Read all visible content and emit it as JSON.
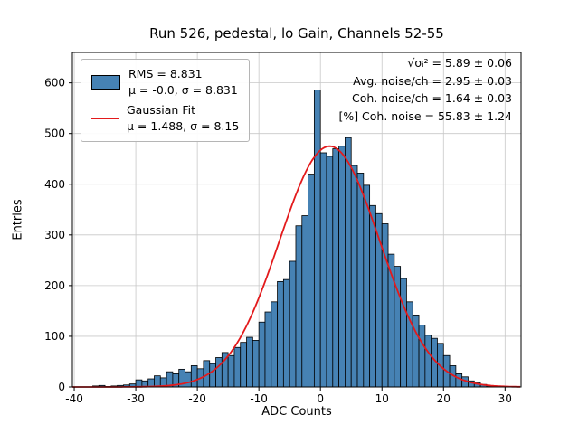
{
  "colors": {
    "bar": "#4682b4",
    "bar_edge": "#000000",
    "fit_line": "#e31a1c",
    "grid": "#c8c8c8",
    "spine": "#000000"
  },
  "legend": {
    "hist_line1": "RMS = 8.831",
    "hist_line2": "μ = -0.0, σ = 8.831",
    "fit_line1": "Gaussian Fit",
    "fit_line2": "μ = 1.488, σ = 8.15"
  },
  "annotations": [
    "√σᵢ² = 5.89 ± 0.06",
    "Avg. noise/ch = 2.95 ± 0.03",
    "Coh. noise/ch = 1.64 ± 0.03",
    "[%] Coh. noise = 55.83 ± 1.24"
  ],
  "chart_data": {
    "type": "bar",
    "subtype": "histogram",
    "title": "Run 526, pedestal, lo Gain, Channels 52-55",
    "xlabel": "ADC Counts",
    "ylabel": "Entries",
    "bin_start": -37,
    "bin_width": 1,
    "values": [
      2,
      3,
      1,
      2,
      3,
      4,
      6,
      14,
      12,
      16,
      22,
      18,
      30,
      26,
      35,
      30,
      42,
      36,
      52,
      46,
      58,
      68,
      62,
      78,
      88,
      98,
      92,
      128,
      148,
      168,
      208,
      212,
      248,
      318,
      338,
      420,
      586,
      462,
      455,
      470,
      475,
      492,
      437,
      422,
      398,
      358,
      342,
      322,
      262,
      238,
      214,
      168,
      142,
      122,
      102,
      96,
      86,
      62,
      42,
      26,
      20,
      12,
      8,
      5,
      2
    ],
    "fit": {
      "type": "gaussian",
      "mu": 1.488,
      "sigma": 8.15,
      "amplitude": 475
    },
    "xlim": [
      -40.3,
      32.6
    ],
    "ylim": [
      0,
      660
    ],
    "xticks": [
      -40,
      -30,
      -20,
      -10,
      0,
      10,
      20,
      30
    ],
    "yticks": [
      0,
      100,
      200,
      300,
      400,
      500,
      600
    ],
    "grid": true,
    "legend_position": "upper left"
  }
}
